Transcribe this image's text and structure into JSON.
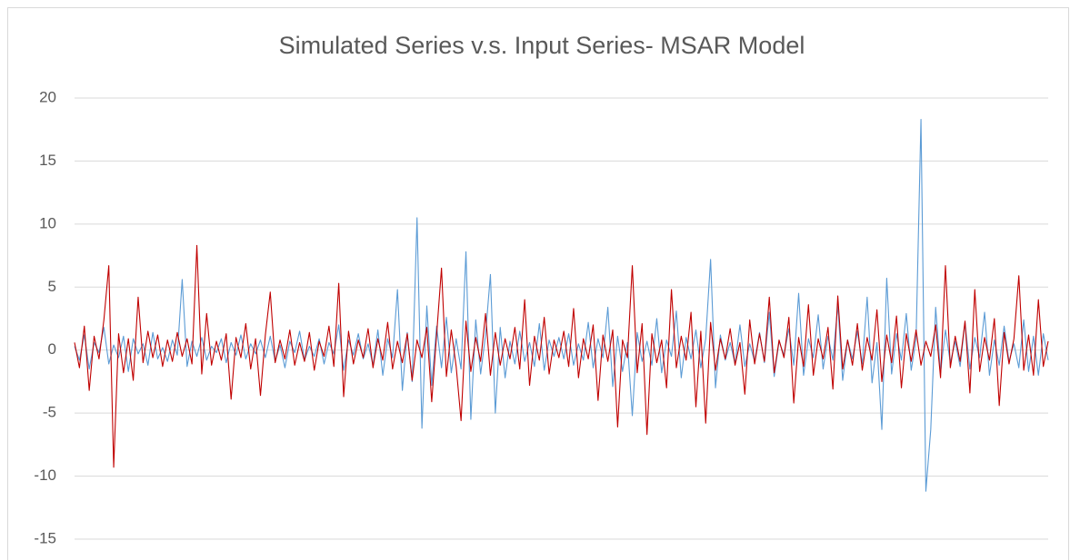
{
  "chart_data": {
    "type": "line",
    "title": "Simulated Series v.s. Input Series- MSAR Model",
    "ylim": [
      -15,
      20
    ],
    "yticks": [
      -15,
      -10,
      -5,
      0,
      5,
      10,
      15,
      20
    ],
    "grid": true,
    "series": [
      {
        "color": "#5b9bd5",
        "values": [
          0.3,
          -0.8,
          1.2,
          -1.5,
          0.6,
          -0.2,
          1.8,
          -1.1,
          0.4,
          -0.6,
          1.1,
          -1.7,
          0.9,
          -0.3,
          0.5,
          -1.2,
          1.4,
          -0.7,
          0.2,
          -0.9,
          0.8,
          -0.4,
          5.6,
          -1.3,
          0.7,
          -0.5,
          1.0,
          -0.8,
          0.3,
          -0.2,
          0.9,
          -1.0,
          0.6,
          -0.4,
          1.2,
          -0.7,
          0.5,
          -0.3,
          0.8,
          -0.6,
          1.1,
          -0.9,
          0.4,
          -1.4,
          0.7,
          -0.2,
          1.5,
          -0.8,
          0.3,
          -0.5,
          0.9,
          -1.1,
          0.6,
          -0.3,
          2.0,
          -1.6,
          0.8,
          -0.4,
          1.3,
          -0.7,
          0.5,
          -1.2,
          1.6,
          -2.0,
          0.9,
          -0.6,
          4.8,
          -3.2,
          1.4,
          -2.5,
          10.5,
          -6.2,
          3.5,
          -2.8,
          1.9,
          -1.4,
          2.6,
          -1.8,
          0.9,
          -1.5,
          7.8,
          -5.5,
          2.4,
          -1.9,
          1.2,
          6.0,
          -5.0,
          1.8,
          -2.2,
          0.7,
          -1.1,
          1.5,
          -0.9,
          0.6,
          -1.3,
          2.1,
          -1.6,
          0.8,
          -0.5,
          1.0,
          -0.7,
          1.3,
          -1.2,
          0.5,
          -0.8,
          2.2,
          -1.4,
          0.9,
          -0.6,
          3.4,
          -2.9,
          1.1,
          -1.7,
          0.6,
          -5.2,
          1.4,
          -0.9,
          0.7,
          -1.2,
          2.5,
          -1.8,
          0.8,
          -0.5,
          3.1,
          -2.2,
          1.0,
          -0.7,
          1.6,
          -1.4,
          0.9,
          7.2,
          -3.0,
          1.2,
          -0.8,
          0.6,
          -1.1,
          2.0,
          -1.3,
          0.5,
          -0.9,
          1.4,
          -1.0,
          3.0,
          -2.1,
          0.7,
          -0.4,
          1.7,
          -1.2,
          4.5,
          -2.0,
          0.9,
          -0.6,
          2.8,
          -1.5,
          1.1,
          -0.8,
          3.6,
          -2.4,
          0.8,
          -0.7,
          1.5,
          -1.1,
          4.2,
          -2.6,
          0.6,
          -6.3,
          5.7,
          -1.9,
          1.3,
          -0.8,
          2.9,
          -1.6,
          0.9,
          18.3,
          -11.2,
          -6.3,
          3.4,
          -1.8,
          1.6,
          -1.0,
          0.7,
          -1.3,
          2.2,
          -1.5,
          1.0,
          -0.6,
          3.0,
          -2.0,
          0.8,
          -1.2,
          1.9,
          -0.9,
          0.5,
          -1.4,
          2.4,
          -1.7,
          1.1,
          -2.0,
          1.3,
          -0.8
        ]
      },
      {
        "color": "#c00000",
        "values": [
          0.6,
          -1.4,
          1.9,
          -3.2,
          1.1,
          -0.7,
          2.4,
          6.7,
          -9.3,
          1.3,
          -1.8,
          0.9,
          -2.4,
          4.2,
          -1.0,
          1.5,
          -0.6,
          1.2,
          -1.3,
          0.8,
          -0.9,
          1.4,
          -0.5,
          0.9,
          -1.1,
          8.3,
          -1.9,
          2.9,
          -1.2,
          0.7,
          -0.8,
          1.3,
          -3.9,
          1.0,
          -0.6,
          2.1,
          -1.5,
          0.9,
          -3.6,
          1.2,
          4.6,
          -1.0,
          0.8,
          -0.7,
          1.6,
          -1.2,
          0.6,
          -0.9,
          1.4,
          -1.6,
          0.7,
          -0.5,
          1.9,
          -1.3,
          5.3,
          -3.7,
          1.5,
          -1.1,
          0.8,
          -0.6,
          1.7,
          -1.4,
          0.9,
          -0.8,
          2.2,
          -1.5,
          0.7,
          -1.0,
          1.3,
          -2.4,
          0.8,
          -0.6,
          1.8,
          -4.1,
          1.2,
          6.5,
          -2.1,
          1.6,
          -1.3,
          -5.6,
          2.3,
          -1.7,
          1.0,
          -0.9,
          2.9,
          -2.0,
          1.4,
          -1.2,
          0.9,
          -0.7,
          1.8,
          -1.5,
          4.0,
          -2.8,
          1.1,
          -0.8,
          2.6,
          -1.9,
          0.8,
          -0.6,
          1.5,
          -1.3,
          3.3,
          -2.2,
          0.9,
          -0.7,
          2.0,
          -4.0,
          1.2,
          -0.9,
          1.6,
          -6.1,
          0.8,
          -0.6,
          6.7,
          -1.8,
          2.1,
          -6.7,
          1.3,
          -1.0,
          0.8,
          -3.0,
          4.8,
          -1.4,
          1.1,
          -0.8,
          3.0,
          -4.5,
          1.5,
          -5.8,
          2.2,
          -1.6,
          0.9,
          -0.7,
          1.7,
          -1.2,
          0.6,
          -3.5,
          2.4,
          -1.1,
          1.3,
          -0.9,
          4.2,
          -1.8,
          0.8,
          -0.6,
          2.6,
          -4.2,
          1.0,
          -1.3,
          3.6,
          -2.0,
          0.9,
          -0.7,
          1.8,
          -3.1,
          4.3,
          -1.5,
          0.8,
          -1.2,
          2.1,
          -1.6,
          1.0,
          -0.8,
          3.2,
          -2.5,
          1.2,
          -1.0,
          2.7,
          -3.0,
          1.3,
          -0.9,
          1.6,
          -1.2,
          0.7,
          -0.5,
          2.0,
          -2.2,
          6.7,
          -1.4,
          1.1,
          -0.9,
          2.3,
          -3.4,
          4.8,
          -1.7,
          1.0,
          -0.8,
          2.5,
          -4.4,
          1.4,
          -1.1,
          0.9,
          5.9,
          -1.6,
          1.2,
          -2.0,
          4.0,
          -1.3,
          0.7
        ]
      }
    ]
  }
}
